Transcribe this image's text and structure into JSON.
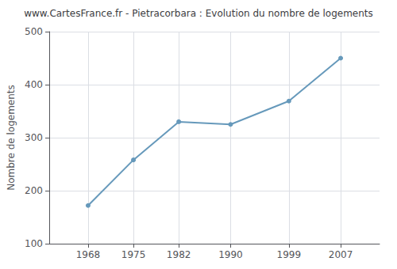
{
  "chart_data": {
    "type": "line",
    "title": "www.CartesFrance.fr - Pietracorbara : Evolution du nombre de logements",
    "ylabel": "Nombre de logements",
    "x": [
      1968,
      1975,
      1982,
      1990,
      1999,
      2007
    ],
    "values": [
      172,
      258,
      330,
      325,
      369,
      450
    ],
    "color": "#6699bb",
    "marker": "circle",
    "xlim": [
      1962,
      2013
    ],
    "xticks": [
      1968,
      1975,
      1982,
      1990,
      1999,
      2007
    ],
    "ylim": [
      100,
      500
    ],
    "yticks": [
      100,
      200,
      300,
      400,
      500
    ],
    "grid": true
  }
}
